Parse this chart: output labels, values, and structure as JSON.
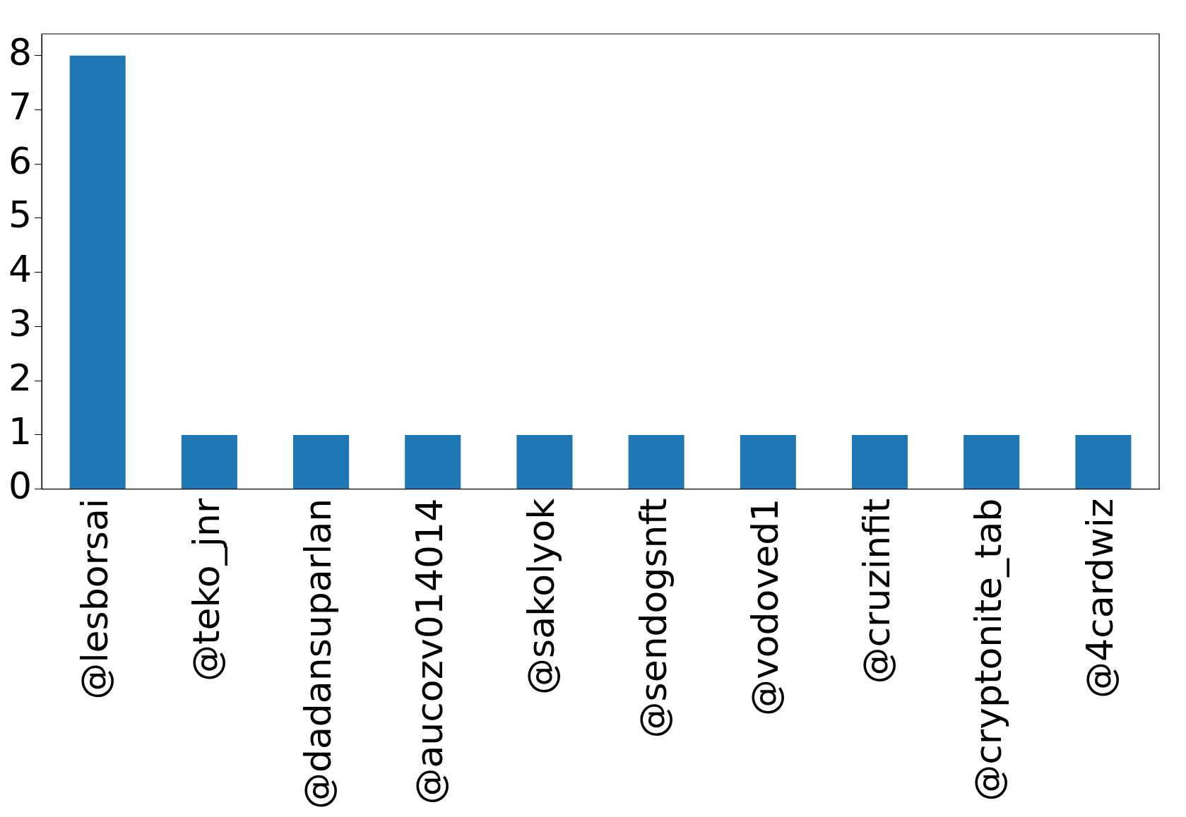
{
  "chart_data": {
    "type": "bar",
    "categories": [
      "@lesborsai",
      "@teko_jnr",
      "@dadansuparlan",
      "@aucozv014014",
      "@sakolyok",
      "@sendogsnft",
      "@vodoved1",
      "@cruzinfit",
      "@cryptonite_tab",
      "@4cardwiz"
    ],
    "values": [
      8,
      1,
      1,
      1,
      1,
      1,
      1,
      1,
      1,
      1
    ],
    "color": "#1f77b4",
    "ylim": [
      0,
      8.4
    ],
    "yticks": [
      0,
      1,
      2,
      3,
      4,
      5,
      6,
      7,
      8
    ],
    "grid": false,
    "legend": false
  }
}
